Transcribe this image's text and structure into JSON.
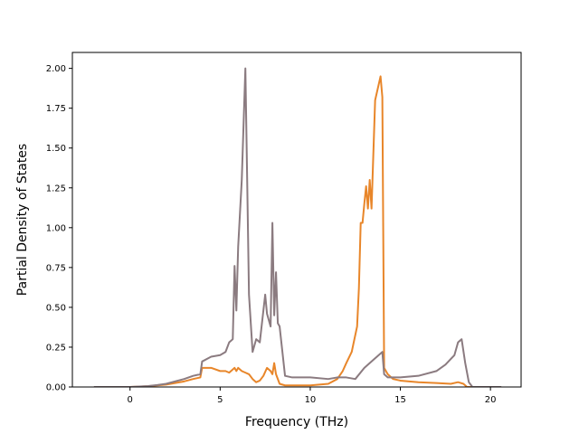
{
  "chart_data": {
    "type": "line",
    "title": "",
    "xlabel": "Frequency (THz)",
    "ylabel": "Partial Density of States",
    "xlim": [
      -3.2,
      21.7
    ],
    "ylim": [
      0,
      2.1
    ],
    "xticks": [
      0,
      5,
      10,
      15,
      20
    ],
    "xtick_labels": [
      "0",
      "5",
      "10",
      "15",
      "20"
    ],
    "yticks": [
      0,
      0.25,
      0.5,
      0.75,
      1.0,
      1.25,
      1.5,
      1.75,
      2.0
    ],
    "ytick_labels": [
      "0.00",
      "0.25",
      "0.50",
      "0.75",
      "1.00",
      "1.25",
      "1.50",
      "1.75",
      "2.00"
    ],
    "grid": false,
    "legend": "none",
    "series": [
      {
        "color": "#e8862a",
        "x": [
          -2.0,
          -1.0,
          0.0,
          0.5,
          1.0,
          1.5,
          2.0,
          2.5,
          3.0,
          3.5,
          3.9,
          4.0,
          4.5,
          5.0,
          5.3,
          5.5,
          5.7,
          5.8,
          5.9,
          6.0,
          6.2,
          6.4,
          6.6,
          6.8,
          7.0,
          7.2,
          7.4,
          7.6,
          7.8,
          7.9,
          8.0,
          8.1,
          8.3,
          8.6,
          9.0,
          10.0,
          11.0,
          11.5,
          11.8,
          12.0,
          12.3,
          12.6,
          12.7,
          12.8,
          12.9,
          13.0,
          13.1,
          13.2,
          13.3,
          13.4,
          13.6,
          13.9,
          14.0,
          14.1,
          14.3,
          14.6,
          15.0,
          16.0,
          17.0,
          17.8,
          18.2,
          18.5,
          18.7,
          19.0,
          20.0,
          20.6
        ],
        "y": [
          0.0,
          0.0,
          0.0,
          0.002,
          0.005,
          0.01,
          0.015,
          0.025,
          0.035,
          0.05,
          0.06,
          0.12,
          0.12,
          0.1,
          0.1,
          0.09,
          0.11,
          0.12,
          0.1,
          0.12,
          0.1,
          0.09,
          0.08,
          0.05,
          0.03,
          0.04,
          0.07,
          0.12,
          0.1,
          0.08,
          0.15,
          0.08,
          0.02,
          0.01,
          0.01,
          0.01,
          0.02,
          0.05,
          0.1,
          0.15,
          0.22,
          0.38,
          0.62,
          1.03,
          1.03,
          1.15,
          1.26,
          1.12,
          1.3,
          1.12,
          1.8,
          1.95,
          1.82,
          0.12,
          0.08,
          0.05,
          0.04,
          0.03,
          0.025,
          0.02,
          0.03,
          0.02,
          0.0,
          0.0,
          0.0,
          0.0
        ]
      },
      {
        "color": "#8b7b80",
        "x": [
          -2.0,
          -1.0,
          0.0,
          0.5,
          1.0,
          1.5,
          2.0,
          2.5,
          3.0,
          3.5,
          3.9,
          4.0,
          4.5,
          5.0,
          5.3,
          5.5,
          5.7,
          5.8,
          5.9,
          6.0,
          6.2,
          6.4,
          6.5,
          6.6,
          6.8,
          7.0,
          7.2,
          7.5,
          7.6,
          7.8,
          7.9,
          8.0,
          8.1,
          8.2,
          8.3,
          8.6,
          9.0,
          10.0,
          11.0,
          11.5,
          12.0,
          12.5,
          13.0,
          13.5,
          13.8,
          14.0,
          14.1,
          14.3,
          15.0,
          16.0,
          17.0,
          17.5,
          18.0,
          18.2,
          18.4,
          18.6,
          18.8,
          19.0,
          20.0,
          20.6
        ],
        "y": [
          0.0,
          0.0,
          0.0,
          0.003,
          0.006,
          0.012,
          0.02,
          0.035,
          0.05,
          0.07,
          0.08,
          0.16,
          0.19,
          0.2,
          0.22,
          0.28,
          0.3,
          0.76,
          0.48,
          0.88,
          1.3,
          2.0,
          1.3,
          0.58,
          0.22,
          0.3,
          0.28,
          0.58,
          0.46,
          0.38,
          1.03,
          0.45,
          0.72,
          0.4,
          0.38,
          0.07,
          0.06,
          0.06,
          0.05,
          0.06,
          0.06,
          0.05,
          0.12,
          0.17,
          0.2,
          0.22,
          0.08,
          0.06,
          0.06,
          0.07,
          0.1,
          0.14,
          0.2,
          0.28,
          0.3,
          0.15,
          0.03,
          0.0,
          0.0,
          0.0
        ]
      }
    ]
  }
}
